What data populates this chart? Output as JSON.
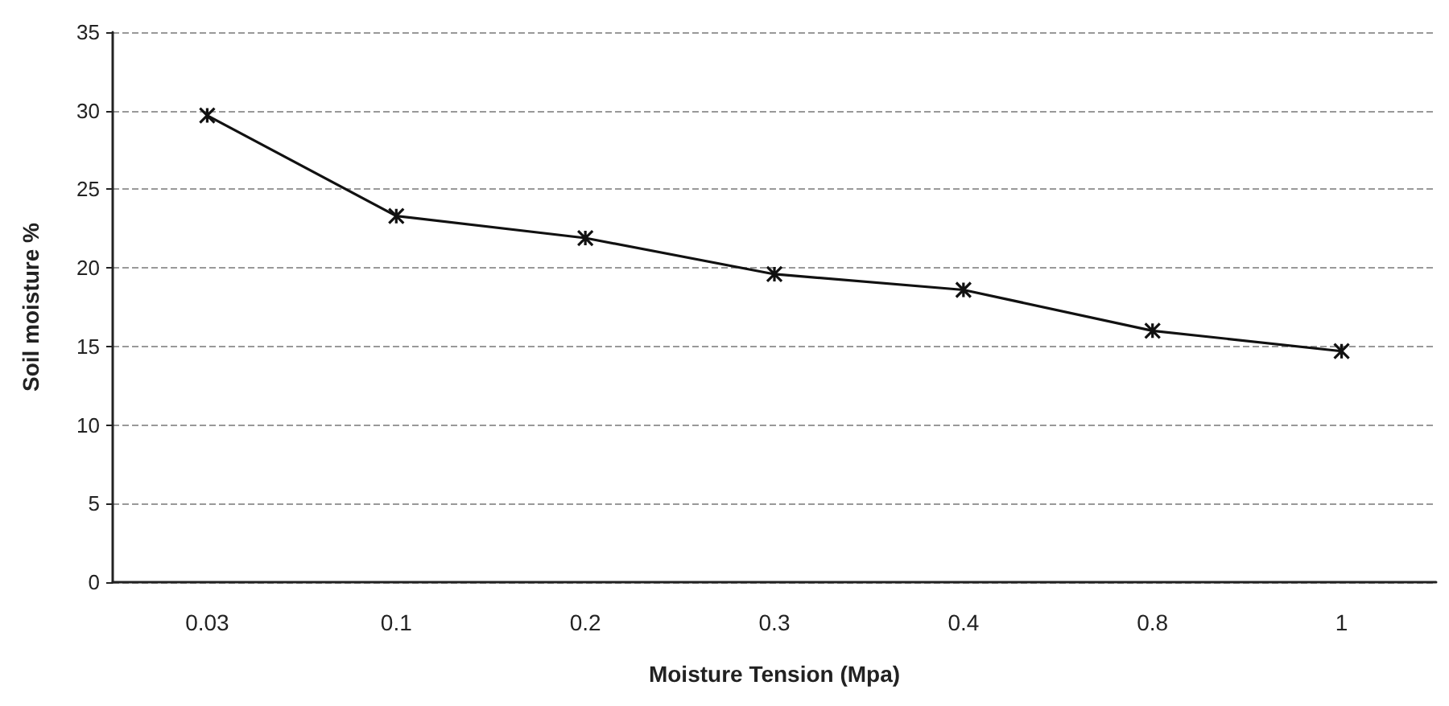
{
  "chart_data": {
    "type": "line",
    "xlabel": "Moisture Tension (Mpa)",
    "ylabel": "Soil moisture %",
    "categories": [
      "0.03",
      "0.1",
      "0.2",
      "0.3",
      "0.4",
      "0.8",
      "1"
    ],
    "series": [
      {
        "color": "#111111",
        "values": [
          29.7,
          23.3,
          21.9,
          19.6,
          18.6,
          16.0,
          14.7
        ]
      }
    ],
    "ylim": [
      0,
      35
    ],
    "yticks": [
      0,
      5,
      10,
      15,
      20,
      25,
      30,
      35
    ],
    "grid": "y",
    "marker": "cross",
    "line_style": "solid"
  }
}
